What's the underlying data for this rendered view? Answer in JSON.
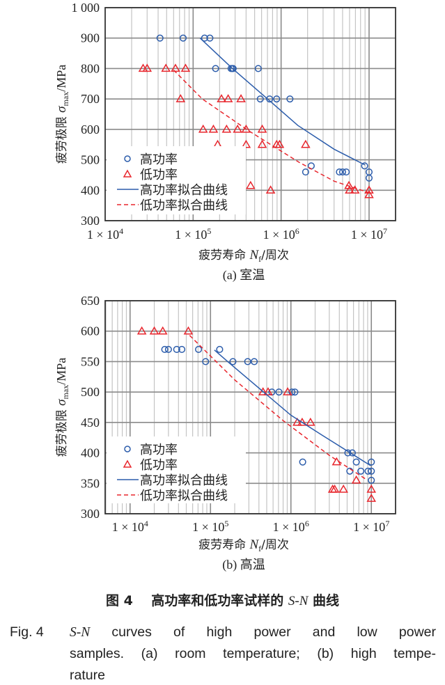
{
  "chart_data": [
    {
      "type": "scatter",
      "caption": "(a) 室温",
      "xlabel": {
        "pre": "疲劳寿命 ",
        "var": "N",
        "sub": "f",
        "post": "/周次"
      },
      "ylabel": {
        "pre": "疲劳极限 ",
        "var": "σ",
        "sub": "max",
        "post": "/MPa"
      },
      "xscale": "log",
      "xlim": [
        10000,
        20000000
      ],
      "ylim": [
        300,
        1000
      ],
      "xticks": [
        {
          "value": 10000,
          "base": "1 × 10",
          "exp": "4"
        },
        {
          "value": 100000,
          "base": "1 × 10",
          "exp": "5"
        },
        {
          "value": 1000000,
          "base": "1 × 10",
          "exp": "6"
        },
        {
          "value": 10000000,
          "base": "1 × 10",
          "exp": "7"
        }
      ],
      "yticks": [
        {
          "value": 300,
          "label": "300"
        },
        {
          "value": 400,
          "label": "400"
        },
        {
          "value": 500,
          "label": "500"
        },
        {
          "value": 600,
          "label": "600"
        },
        {
          "value": 700,
          "label": "700"
        },
        {
          "value": 800,
          "label": "800"
        },
        {
          "value": 900,
          "label": "900"
        },
        {
          "value": 1000,
          "label": "1 000"
        }
      ],
      "grid": true,
      "legend_position": "bottom-left",
      "series": [
        {
          "name": "高功率",
          "kind": "points",
          "marker": "circle",
          "color": "#2b5cab",
          "points": [
            [
              42000,
              900
            ],
            [
              77000,
              900
            ],
            [
              135000,
              900
            ],
            [
              155000,
              900
            ],
            [
              180000,
              800
            ],
            [
              270000,
              800
            ],
            [
              280000,
              800
            ],
            [
              285000,
              800
            ],
            [
              550000,
              800
            ],
            [
              580000,
              700
            ],
            [
              740000,
              700
            ],
            [
              890000,
              700
            ],
            [
              1260000,
              700
            ],
            [
              1900000,
              460
            ],
            [
              2200000,
              480
            ],
            [
              4600000,
              460
            ],
            [
              5000000,
              460
            ],
            [
              5500000,
              460
            ],
            [
              8900000,
              480
            ],
            [
              10000000,
              460
            ],
            [
              10000000,
              440
            ]
          ]
        },
        {
          "name": "低功率",
          "kind": "points",
          "marker": "triangle",
          "color": "#e8262d",
          "points": [
            [
              27000,
              800
            ],
            [
              30000,
              800
            ],
            [
              49000,
              800
            ],
            [
              63000,
              800
            ],
            [
              82000,
              800
            ],
            [
              72000,
              700
            ],
            [
              210000,
              700
            ],
            [
              250000,
              700
            ],
            [
              350000,
              700
            ],
            [
              130000,
              600
            ],
            [
              170000,
              600
            ],
            [
              240000,
              600
            ],
            [
              320000,
              600
            ],
            [
              400000,
              600
            ],
            [
              610000,
              600
            ],
            [
              190000,
              550
            ],
            [
              400000,
              550
            ],
            [
              610000,
              550
            ],
            [
              890000,
              550
            ],
            [
              960000,
              550
            ],
            [
              1900000,
              550
            ],
            [
              450000,
              415
            ],
            [
              760000,
              400
            ],
            [
              5900000,
              415
            ],
            [
              6000000,
              400
            ],
            [
              6900000,
              400
            ],
            [
              10000000,
              400
            ],
            [
              10000000,
              385
            ]
          ]
        },
        {
          "name": "高功率拟合曲线",
          "kind": "line",
          "dash": false,
          "color": "#2b5cab",
          "points": [
            [
              120000,
              900
            ],
            [
              280000,
              800
            ],
            [
              700000,
              700
            ],
            [
              1550000,
              613
            ],
            [
              4000000,
              535
            ],
            [
              9000000,
              483
            ]
          ]
        },
        {
          "name": "低功率拟合曲线",
          "kind": "line",
          "dash": true,
          "color": "#e8262d",
          "points": [
            [
              60000,
              795
            ],
            [
              127000,
              700
            ],
            [
              430000,
              595
            ],
            [
              1600000,
              492
            ],
            [
              4000000,
              430
            ],
            [
              10000000,
              392
            ]
          ]
        }
      ]
    },
    {
      "type": "scatter",
      "caption": "(b) 高温",
      "xlabel": {
        "pre": "疲劳寿命 ",
        "var": "N",
        "sub": "f",
        "post": "/周次"
      },
      "ylabel": {
        "pre": "疲劳极限 ",
        "var": "σ",
        "sub": "max",
        "post": "/MPa"
      },
      "xscale": "log",
      "xlim": [
        4900,
        20000000
      ],
      "ylim": [
        300,
        650
      ],
      "xticks": [
        {
          "value": 10000,
          "base": "1 × 10",
          "exp": "4"
        },
        {
          "value": 100000,
          "base": "1 × 10",
          "exp": "5"
        },
        {
          "value": 1000000,
          "base": "1 × 10",
          "exp": "6"
        },
        {
          "value": 10000000,
          "base": "1 × 10",
          "exp": "7"
        }
      ],
      "yticks": [
        {
          "value": 300,
          "label": "300"
        },
        {
          "value": 350,
          "label": "350"
        },
        {
          "value": 400,
          "label": "400"
        },
        {
          "value": 450,
          "label": "450"
        },
        {
          "value": 500,
          "label": "500"
        },
        {
          "value": 550,
          "label": "550"
        },
        {
          "value": 600,
          "label": "600"
        },
        {
          "value": 650,
          "label": "650"
        }
      ],
      "grid": true,
      "legend_position": "bottom-left",
      "series": [
        {
          "name": "高功率",
          "kind": "points",
          "marker": "circle",
          "color": "#2b5cab",
          "points": [
            [
              27000,
              570
            ],
            [
              30000,
              570
            ],
            [
              38000,
              570
            ],
            [
              44000,
              570
            ],
            [
              71000,
              570
            ],
            [
              130000,
              570
            ],
            [
              87000,
              550
            ],
            [
              190000,
              550
            ],
            [
              290000,
              550
            ],
            [
              350000,
              550
            ],
            [
              580000,
              500
            ],
            [
              710000,
              500
            ],
            [
              1030000,
              500
            ],
            [
              1120000,
              500
            ],
            [
              5100000,
              400
            ],
            [
              5800000,
              400
            ],
            [
              1400000,
              385
            ],
            [
              6500000,
              385
            ],
            [
              10000000,
              385
            ],
            [
              5400000,
              370
            ],
            [
              7400000,
              370
            ],
            [
              9100000,
              370
            ],
            [
              10000000,
              370
            ],
            [
              10000000,
              355
            ]
          ]
        },
        {
          "name": "低功率",
          "kind": "points",
          "marker": "triangle",
          "color": "#e8262d",
          "points": [
            [
              14000,
              600
            ],
            [
              20000,
              600
            ],
            [
              25500,
              600
            ],
            [
              53000,
              600
            ],
            [
              450000,
              500
            ],
            [
              520000,
              500
            ],
            [
              910000,
              500
            ],
            [
              1200000,
              450
            ],
            [
              1380000,
              450
            ],
            [
              1750000,
              450
            ],
            [
              3700000,
              385
            ],
            [
              6500000,
              355
            ],
            [
              3300000,
              340
            ],
            [
              3500000,
              340
            ],
            [
              4500000,
              340
            ],
            [
              10000000,
              340
            ],
            [
              10000000,
              325
            ]
          ]
        },
        {
          "name": "高功率拟合曲线",
          "kind": "line",
          "dash": false,
          "color": "#2b5cab",
          "points": [
            [
              112000,
              569
            ],
            [
              174000,
              547
            ],
            [
              1000000,
              462
            ],
            [
              2450000,
              429
            ],
            [
              9800000,
              379
            ]
          ]
        },
        {
          "name": "低功率拟合曲线",
          "kind": "line",
          "dash": true,
          "color": "#e8262d",
          "points": [
            [
              55000,
              593
            ],
            [
              200000,
              520
            ],
            [
              800000,
              453
            ],
            [
              3000000,
              396
            ],
            [
              8700000,
              356
            ]
          ]
        }
      ]
    }
  ],
  "figure_caption_cn": {
    "label": "图 4",
    "pre": "高功率和低功率试样的 ",
    "it": "S-N",
    "post": " 曲线"
  },
  "figure_caption_en": {
    "label": "Fig. 4",
    "line1_it": "S-N",
    "line1_rest": " curves of high power and low power",
    "line2": "samples. (a) room temperature; (b) high tempe-",
    "line3": "rature"
  }
}
